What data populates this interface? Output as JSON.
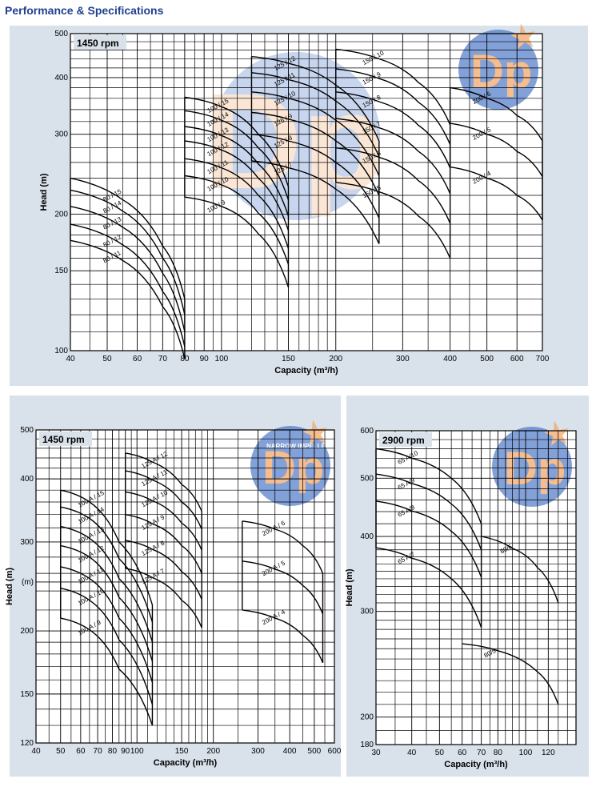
{
  "page": {
    "title": "Performance & Specifications"
  },
  "colors": {
    "panel_bg": "#d9e1ea",
    "grid": "#000000",
    "curve": "#000000",
    "title": "#1f3f8f",
    "watermark_orange": "#f3a86a",
    "watermark_blue": "#3b6cc4"
  },
  "watermark": {
    "text": "DP",
    "subtext": "NARROW IMPELLERS"
  },
  "chart_data": [
    {
      "type": "line",
      "speed_label": "1450 rpm",
      "xlabel": "Capacity (m³/h)",
      "ylabel": "Head (m)",
      "xscale": "log",
      "yscale": "log",
      "xlim": [
        40,
        700
      ],
      "ylim": [
        100,
        500
      ],
      "xticks": [
        40,
        50,
        60,
        70,
        80,
        90,
        100,
        150,
        200,
        300,
        400,
        500,
        600,
        700
      ],
      "yticks": [
        100,
        150,
        200,
        300,
        400,
        500
      ],
      "grid": true,
      "series": [
        {
          "name": "80 / 15",
          "x": [
            40,
            55,
            70,
            80
          ],
          "y": [
            240,
            215,
            170,
            130
          ]
        },
        {
          "name": "80 / 14",
          "x": [
            40,
            55,
            70,
            80
          ],
          "y": [
            226,
            203,
            160,
            120
          ]
        },
        {
          "name": "80 / 13",
          "x": [
            40,
            55,
            70,
            80
          ],
          "y": [
            208,
            187,
            148,
            110
          ]
        },
        {
          "name": "80 / 12",
          "x": [
            40,
            55,
            70,
            80
          ],
          "y": [
            190,
            171,
            135,
            102
          ]
        },
        {
          "name": "80 / 11",
          "x": [
            40,
            55,
            70,
            80
          ],
          "y": [
            175,
            158,
            125,
            96
          ]
        },
        {
          "name": "100 / 15",
          "x": [
            80,
            100,
            125,
            150
          ],
          "y": [
            362,
            345,
            300,
            230
          ]
        },
        {
          "name": "100 / 14",
          "x": [
            80,
            100,
            125,
            150
          ],
          "y": [
            338,
            322,
            280,
            215
          ]
        },
        {
          "name": "100 / 13",
          "x": [
            80,
            100,
            125,
            150
          ],
          "y": [
            312,
            298,
            258,
            198
          ]
        },
        {
          "name": "100 / 12",
          "x": [
            80,
            100,
            125,
            150
          ],
          "y": [
            290,
            277,
            240,
            184
          ]
        },
        {
          "name": "100 / 11",
          "x": [
            80,
            100,
            125,
            150
          ],
          "y": [
            265,
            253,
            220,
            168
          ]
        },
        {
          "name": "100 / 10",
          "x": [
            80,
            100,
            125,
            150
          ],
          "y": [
            243,
            232,
            201,
            155
          ]
        },
        {
          "name": "100 / 9",
          "x": [
            80,
            100,
            125,
            150
          ],
          "y": [
            218,
            208,
            181,
            138
          ]
        },
        {
          "name": "125 / 12",
          "x": [
            120,
            150,
            200,
            260
          ],
          "y": [
            445,
            430,
            385,
            290
          ]
        },
        {
          "name": "125 / 11",
          "x": [
            120,
            150,
            200,
            260
          ],
          "y": [
            410,
            396,
            355,
            268
          ]
        },
        {
          "name": "125 / 10",
          "x": [
            120,
            150,
            200,
            260
          ],
          "y": [
            372,
            360,
            322,
            243
          ]
        },
        {
          "name": "125 / 9",
          "x": [
            120,
            150,
            200,
            260
          ],
          "y": [
            335,
            324,
            290,
            220
          ]
        },
        {
          "name": "125 / 8",
          "x": [
            120,
            150,
            200,
            260
          ],
          "y": [
            300,
            290,
            260,
            196
          ]
        },
        {
          "name": "125 / 7",
          "x": [
            120,
            150,
            200,
            260
          ],
          "y": [
            262,
            253,
            227,
            172
          ]
        },
        {
          "name": "150 / 10",
          "x": [
            200,
            260,
            330,
            400
          ],
          "y": [
            462,
            440,
            390,
            315
          ]
        },
        {
          "name": "150 / 9",
          "x": [
            200,
            260,
            330,
            400
          ],
          "y": [
            418,
            398,
            353,
            285
          ]
        },
        {
          "name": "150 / 8",
          "x": [
            200,
            260,
            330,
            400
          ],
          "y": [
            372,
            354,
            314,
            253
          ]
        },
        {
          "name": "150 / 7",
          "x": [
            200,
            260,
            330,
            400
          ],
          "y": [
            325,
            310,
            275,
            222
          ]
        },
        {
          "name": "150 / 6",
          "x": [
            200,
            260,
            330,
            400
          ],
          "y": [
            280,
            267,
            237,
            191
          ]
        },
        {
          "name": "150 / 5",
          "x": [
            200,
            260,
            330,
            400
          ],
          "y": [
            235,
            224,
            198,
            160
          ]
        },
        {
          "name": "200 / 6",
          "x": [
            400,
            500,
            600,
            700
          ],
          "y": [
            380,
            360,
            330,
            290
          ]
        },
        {
          "name": "200 / 5",
          "x": [
            400,
            500,
            600,
            700
          ],
          "y": [
            317,
            300,
            275,
            242
          ]
        },
        {
          "name": "200 / 4",
          "x": [
            400,
            500,
            600,
            700
          ],
          "y": [
            254,
            240,
            220,
            194
          ]
        }
      ]
    },
    {
      "type": "line",
      "speed_label": "1450 rpm",
      "xlabel": "Capacity (m³/h)",
      "ylabel": "Head (m)",
      "xscale": "log",
      "yscale": "log",
      "xlim": [
        40,
        600
      ],
      "ylim": [
        120,
        500
      ],
      "xticks": [
        40,
        50,
        60,
        70,
        80,
        90,
        100,
        150,
        200,
        300,
        400,
        500,
        600
      ],
      "yticks": [
        120,
        150,
        200,
        250,
        300,
        400,
        500
      ],
      "ytick_labels": [
        "120",
        "150",
        "200",
        "(m)",
        "300",
        "400",
        "500"
      ],
      "grid": true,
      "series": [
        {
          "name": "100 A / 15",
          "x": [
            50,
            65,
            85,
            115
          ],
          "y": [
            380,
            360,
            300,
            225
          ]
        },
        {
          "name": "100 A / 14",
          "x": [
            50,
            65,
            85,
            115
          ],
          "y": [
            352,
            334,
            278,
            208
          ]
        },
        {
          "name": "100 A / 13",
          "x": [
            50,
            65,
            85,
            115
          ],
          "y": [
            322,
            305,
            254,
            190
          ]
        },
        {
          "name": "100 A / 12",
          "x": [
            50,
            65,
            85,
            115
          ],
          "y": [
            295,
            280,
            233,
            174
          ]
        },
        {
          "name": "100 A / 11",
          "x": [
            50,
            65,
            85,
            115
          ],
          "y": [
            268,
            254,
            212,
            158
          ]
        },
        {
          "name": "100 A / 10",
          "x": [
            50,
            65,
            85,
            115
          ],
          "y": [
            243,
            230,
            192,
            143
          ]
        },
        {
          "name": "100 A / 9",
          "x": [
            50,
            65,
            85,
            115
          ],
          "y": [
            212,
            201,
            168,
            130
          ]
        },
        {
          "name": "125 A / 12",
          "x": [
            90,
            115,
            150,
            180
          ],
          "y": [
            450,
            432,
            390,
            345
          ]
        },
        {
          "name": "125 A / 11",
          "x": [
            90,
            115,
            150,
            180
          ],
          "y": [
            415,
            398,
            360,
            318
          ]
        },
        {
          "name": "125 A / 10",
          "x": [
            90,
            115,
            150,
            180
          ],
          "y": [
            377,
            362,
            327,
            289
          ]
        },
        {
          "name": "125 A / 9",
          "x": [
            90,
            115,
            150,
            180
          ],
          "y": [
            340,
            326,
            295,
            260
          ]
        },
        {
          "name": "125 A / 8",
          "x": [
            90,
            115,
            150,
            180
          ],
          "y": [
            302,
            290,
            262,
            231
          ]
        },
        {
          "name": "125 A / 7",
          "x": [
            90,
            115,
            150,
            180
          ],
          "y": [
            266,
            255,
            230,
            203
          ]
        },
        {
          "name": "200 A / 6",
          "x": [
            260,
            350,
            450,
            540
          ],
          "y": [
            330,
            318,
            295,
            260
          ]
        },
        {
          "name": "200 A / 5",
          "x": [
            260,
            350,
            450,
            540
          ],
          "y": [
            275,
            265,
            246,
            216
          ]
        },
        {
          "name": "200 A / 4",
          "x": [
            260,
            350,
            450,
            540
          ],
          "y": [
            220,
            212,
            196,
            173
          ]
        }
      ]
    },
    {
      "type": "line",
      "speed_label": "2900 rpm",
      "xlabel": "Capacity (m³/h)",
      "ylabel": "Head (m)",
      "xscale": "log",
      "yscale": "log",
      "xlim": [
        30,
        150
      ],
      "ylim": [
        180,
        600
      ],
      "xticks": [
        30,
        40,
        50,
        60,
        70,
        80,
        100,
        120
      ],
      "yticks": [
        180,
        200,
        300,
        400,
        500,
        600
      ],
      "grid": true,
      "series": [
        {
          "name": "65 A/10",
          "x": [
            30,
            40,
            55,
            70
          ],
          "y": [
            560,
            540,
            500,
            420
          ]
        },
        {
          "name": "65 A/9",
          "x": [
            30,
            40,
            55,
            70
          ],
          "y": [
            508,
            490,
            453,
            380
          ]
        },
        {
          "name": "65 A/8",
          "x": [
            30,
            40,
            55,
            70
          ],
          "y": [
            458,
            441,
            408,
            342
          ]
        },
        {
          "name": "65 A/7",
          "x": [
            30,
            40,
            55,
            70
          ],
          "y": [
            383,
            368,
            340,
            282
          ]
        },
        {
          "name": "80/6",
          "x": [
            70,
            90,
            110,
            130
          ],
          "y": [
            400,
            382,
            355,
            310
          ]
        },
        {
          "name": "80/5",
          "x": [
            60,
            80,
            110,
            130
          ],
          "y": [
            265,
            258,
            238,
            210
          ]
        }
      ]
    }
  ]
}
